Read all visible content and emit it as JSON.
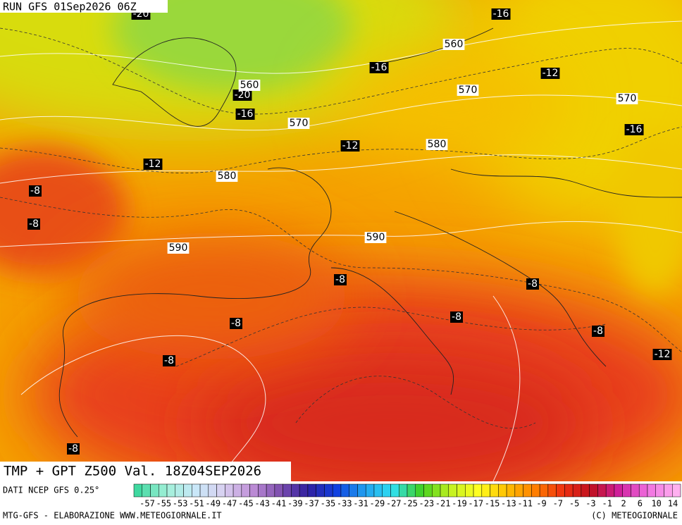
{
  "header": {
    "run": "RUN GFS 01Sep2026 06Z"
  },
  "map": {
    "temperature_labels": [
      -20,
      -16,
      -16,
      -12,
      -20,
      -16,
      -16,
      -12,
      -12,
      -8,
      -8,
      -8,
      -8,
      -8,
      -8,
      -8,
      -12,
      -8,
      -8
    ],
    "height_labels": [
      560,
      560,
      570,
      570,
      570,
      580,
      580,
      590,
      590
    ]
  },
  "footer": {
    "title": "TMP + GPT Z500 Val. 18Z04SEP2026",
    "source": "DATI NCEP GFS 0.25°",
    "credit": "MTG-GFS - ELABORAZIONE WWW.METEOGIORNALE.IT",
    "copyright": "(C) METEOGIORNALE",
    "scale_ticks": [
      -57,
      -55,
      -53,
      -51,
      -49,
      -47,
      -45,
      -43,
      -41,
      -39,
      -37,
      -35,
      -33,
      -31,
      -29,
      -27,
      -25,
      -23,
      -21,
      -19,
      -17,
      -15,
      -13,
      -11,
      -9,
      -7,
      -5,
      -3,
      -1,
      2,
      6,
      10,
      14
    ]
  }
}
